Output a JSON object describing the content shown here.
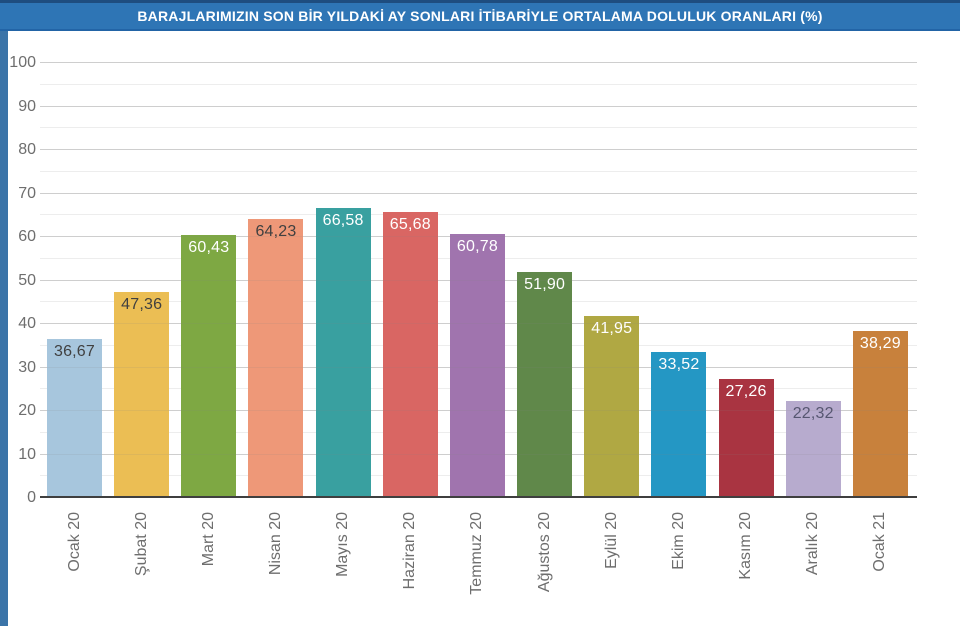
{
  "page": {
    "title_bar": {
      "text": "BARAJLARIMIZIN SON BİR YILDAKİ AY SONLARI İTİBARİYLE ORTALAMA DOLULUK ORANLARI (%)",
      "bg_color": "#2e75b5",
      "top_border_color": "#1e4d7f",
      "text_color": "#ffffff"
    },
    "left_stripe_color": "#3b74a8",
    "background_color": "#ffffff"
  },
  "chart_data": {
    "type": "bar",
    "title": "BARAJLARIMIZIN SON BİR YILDAKİ AY SONLARI İTİBARİYLE ORTALAMA DOLULUK ORANLARI (%)",
    "xlabel": "",
    "ylabel": "",
    "ylim": [
      0,
      100
    ],
    "y_ticks": [
      0,
      10,
      20,
      30,
      40,
      50,
      60,
      70,
      80,
      90,
      100
    ],
    "y_minor_step": 5,
    "grid": "horizontal, major every 10 with faint minor every 5",
    "legend": "none",
    "categories": [
      "Ocak 20",
      "Şubat 20",
      "Mart 20",
      "Nisan 20",
      "Mayıs 20",
      "Haziran 20",
      "Temmuz 20",
      "Ağustos 20",
      "Eylül 20",
      "Ekim 20",
      "Kasım 20",
      "Aralık 20",
      "Ocak 21"
    ],
    "values": [
      36.67,
      47.36,
      60.43,
      64.23,
      66.58,
      65.68,
      60.78,
      51.9,
      41.95,
      33.52,
      27.26,
      22.32,
      38.29
    ],
    "value_labels": [
      "36,67",
      "47,36",
      "60,43",
      "64,23",
      "66,58",
      "65,68",
      "60,78",
      "51,90",
      "41,95",
      "33,52",
      "27,26",
      "22,32",
      "38,29"
    ],
    "bar_colors": [
      "#a7c6dd",
      "#ebbe54",
      "#7ea843",
      "#ee9878",
      "#39a0a0",
      "#d96663",
      "#a074ae",
      "#60884a",
      "#b0a843",
      "#2497c4",
      "#a93441",
      "#b7abce",
      "#c8813c"
    ],
    "value_label_colors": [
      "#404040",
      "#404040",
      "#ffffff",
      "#404040",
      "#ffffff",
      "#ffffff",
      "#ffffff",
      "#ffffff",
      "#ffffff",
      "#ffffff",
      "#ffffff",
      "#565670",
      "#ffffff"
    ],
    "axis_text_color": "#6e6e6e",
    "grid_major_color": "#d9d9d9",
    "grid_minor_color": "#ededed",
    "baseline_color": "#3f3f3f"
  }
}
